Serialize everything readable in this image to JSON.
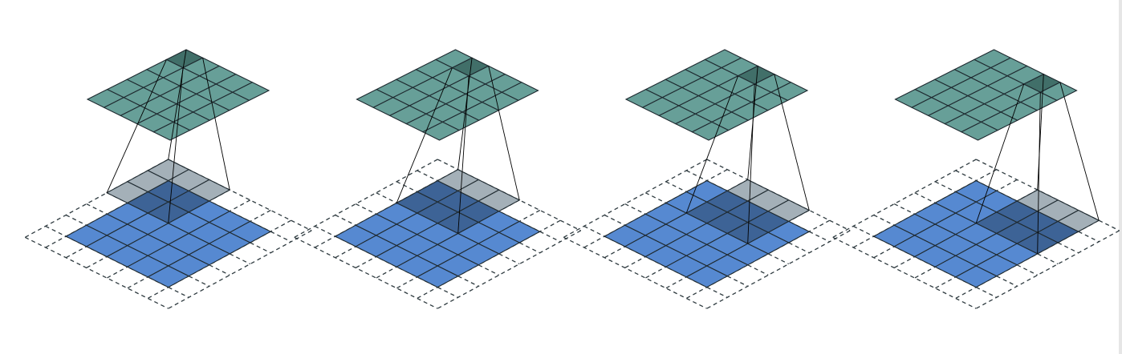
{
  "figure": {
    "panel_count": 4,
    "input_grid": {
      "rows": 5,
      "cols": 5
    },
    "padding": 1,
    "kernel": {
      "rows": 3,
      "cols": 3
    },
    "output_grid": {
      "rows": 5,
      "cols": 5
    },
    "steps": [
      {
        "step": 1,
        "kernel_row": 0,
        "kernel_col": 0,
        "output_row": 0,
        "output_col": 0
      },
      {
        "step": 2,
        "kernel_row": 0,
        "kernel_col": 1,
        "output_row": 0,
        "output_col": 1
      },
      {
        "step": 3,
        "kernel_row": 0,
        "kernel_col": 2,
        "output_row": 0,
        "output_col": 2
      },
      {
        "step": 4,
        "kernel_row": 0,
        "kernel_col": 3,
        "output_row": 0,
        "output_col": 3
      }
    ]
  },
  "colors": {
    "input_fill": "#5689d1",
    "input_overlap": "#3d6396",
    "kernel_pad_fill": "#a4b0b8",
    "output_fill": "#679f98",
    "output_active": "#416f69",
    "grid_line": "#1f2a30",
    "dashed_line": "#2f3b40",
    "projection_line": "#000000"
  }
}
